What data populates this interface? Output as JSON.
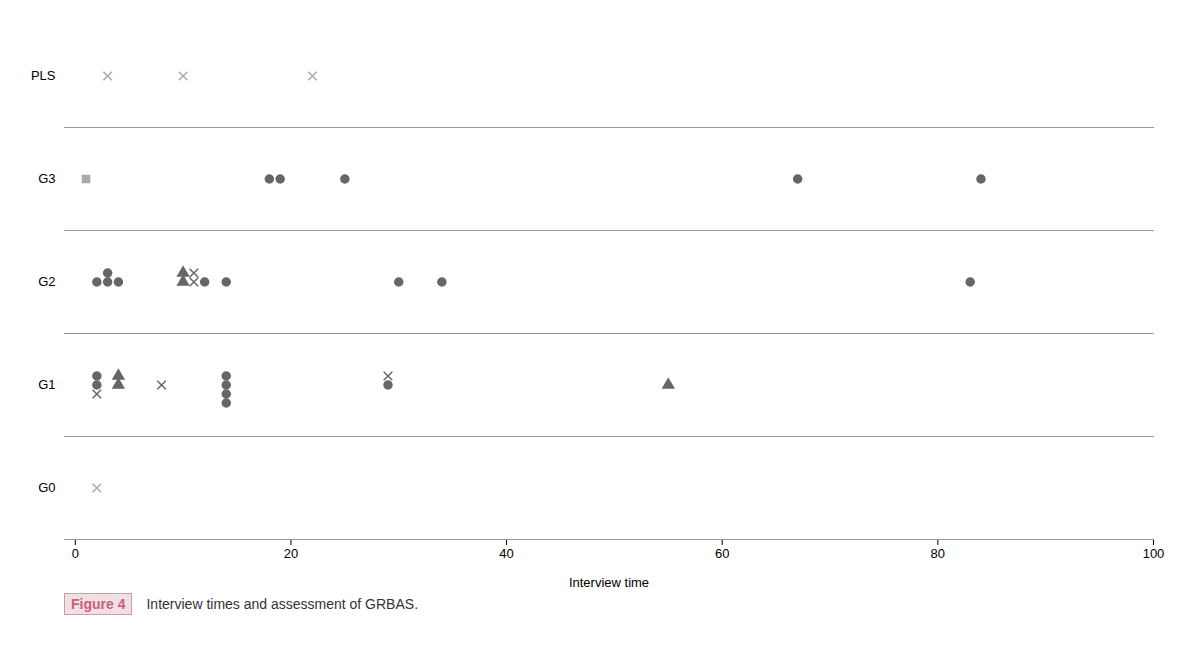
{
  "chart_data": {
    "type": "scatter",
    "xlabel": "Interview time",
    "xlim": [
      -1,
      100
    ],
    "xticks": [
      0,
      20,
      40,
      60,
      80,
      100
    ],
    "categories": [
      "PLS",
      "G3",
      "G2",
      "G1",
      "G0"
    ],
    "series": [
      {
        "marker": "x",
        "color": "#aaaaaa",
        "values": [
          [
            3,
            10,
            22
          ],
          [],
          [],
          [],
          [
            2
          ]
        ]
      },
      {
        "marker": "square",
        "color": "#aaaaaa",
        "values": [
          [],
          [
            1
          ],
          [],
          [],
          []
        ]
      },
      {
        "marker": "circle",
        "color": "#666666",
        "values": [
          [],
          [
            18,
            19,
            25,
            67,
            84
          ],
          [
            2,
            3,
            4,
            3,
            83,
            12,
            14,
            30,
            34
          ],
          [
            14,
            14,
            14,
            29,
            2,
            2,
            14
          ],
          []
        ]
      },
      {
        "marker": "triangle",
        "color": "#666666",
        "values": [
          [],
          [],
          [
            10,
            10
          ],
          [
            4,
            4,
            55
          ],
          []
        ]
      },
      {
        "marker": "x",
        "color": "#666666",
        "values": [
          [],
          [],
          [
            11,
            11
          ],
          [
            2,
            8,
            29
          ],
          []
        ]
      }
    ],
    "figure_label": "Figure 4",
    "caption": "Interview times and assessment of GRBAS."
  }
}
